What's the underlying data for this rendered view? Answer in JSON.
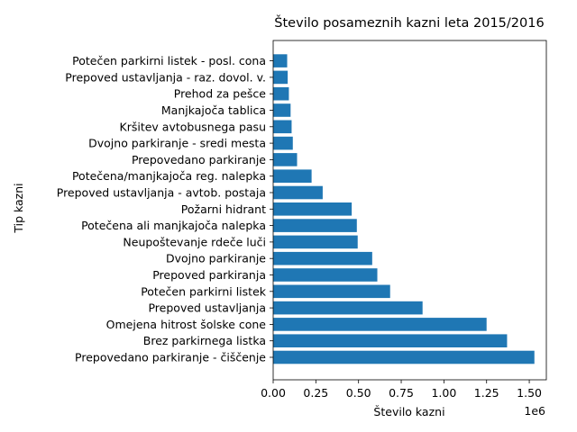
{
  "chart_data": {
    "type": "bar",
    "orientation": "horizontal",
    "title": "Število posameznih kazni leta 2015/2016",
    "xlabel": "Število kazni",
    "ylabel": "Tip kazni",
    "x_offset_label": "1e6",
    "xlim": [
      0,
      1600000
    ],
    "x_ticks": [
      0,
      250000,
      500000,
      750000,
      1000000,
      1250000,
      1500000
    ],
    "x_tick_labels": [
      "0.00",
      "0.25",
      "0.50",
      "0.75",
      "1.00",
      "1.25",
      "1.50"
    ],
    "bar_color": "#1f77b4",
    "grid": false,
    "categories": [
      "Prepovedano parkiranje - čiščenje",
      "Brez parkirnega listka",
      "Omejena hitrost šolske cone",
      "Prepoved ustavljanja",
      "Potečen parkirni listek",
      "Prepoved parkiranja",
      "Dvojno parkiranje",
      "Neupoštevanje rdeče luči",
      "Potečena ali manjkajoča nalepka",
      "Požarni hidrant",
      "Prepoved ustavljanja - avtob. postaja",
      "Potečena/manjkajoča reg. nalepka",
      "Prepovedano parkiranje",
      "Dvojno parkiranje - sredi mesta",
      "Kršitev avtobusnega pasu",
      "Manjkajoča tablica",
      "Prehod za pešce",
      "Prepoved ustavljanja - raz. dovol. v.",
      "Potečen parkirni listek - posl. cona"
    ],
    "values": [
      1530000,
      1370000,
      1250000,
      875000,
      685000,
      610000,
      580000,
      495000,
      490000,
      460000,
      290000,
      225000,
      140000,
      115000,
      108000,
      102000,
      92000,
      85000,
      82000
    ]
  }
}
